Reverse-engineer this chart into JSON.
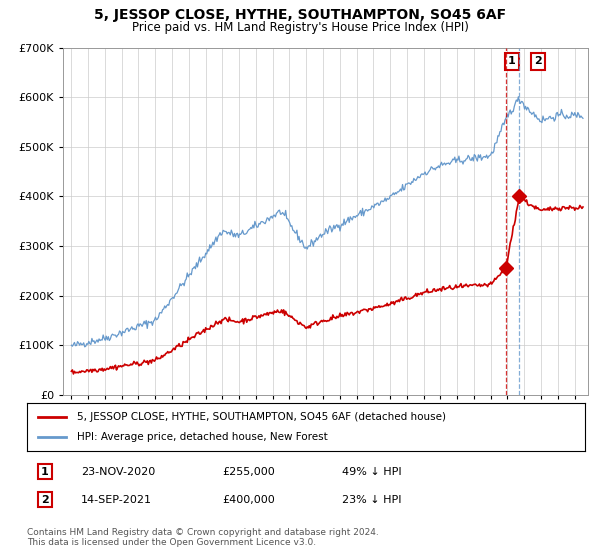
{
  "title": "5, JESSOP CLOSE, HYTHE, SOUTHAMPTON, SO45 6AF",
  "subtitle": "Price paid vs. HM Land Registry's House Price Index (HPI)",
  "ylim": [
    0,
    700000
  ],
  "yticks": [
    0,
    100000,
    200000,
    300000,
    400000,
    500000,
    600000,
    700000
  ],
  "red_line_label": "5, JESSOP CLOSE, HYTHE, SOUTHAMPTON, SO45 6AF (detached house)",
  "blue_line_label": "HPI: Average price, detached house, New Forest",
  "ann1_num": "1",
  "ann1_date": "23-NOV-2020",
  "ann1_price": "£255,000",
  "ann1_pct": "49% ↓ HPI",
  "ann1_x": 2020.9,
  "ann1_y": 255000,
  "ann2_num": "2",
  "ann2_date": "14-SEP-2021",
  "ann2_price": "£400,000",
  "ann2_pct": "23% ↓ HPI",
  "ann2_x": 2021.7,
  "ann2_y": 400000,
  "footer": "Contains HM Land Registry data © Crown copyright and database right 2024.\nThis data is licensed under the Open Government Licence v3.0.",
  "red_color": "#cc0000",
  "blue_color": "#6699cc",
  "grid_color": "#cccccc",
  "background_color": "#ffffff",
  "xlim_left": 1994.5,
  "xlim_right": 2025.8
}
